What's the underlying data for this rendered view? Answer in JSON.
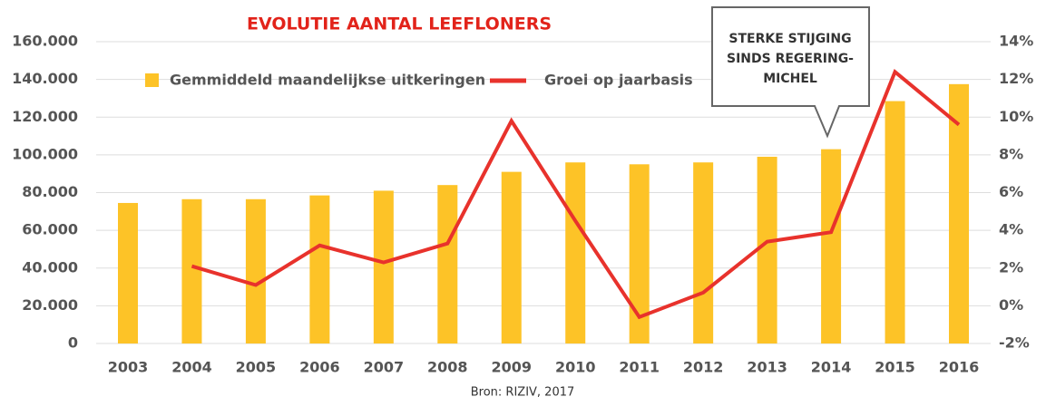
{
  "chart_data": {
    "type": "bar-line",
    "title": "EVOLUTIE AANTAL LEEFLONERS",
    "source": "Bron: RIZIV, 2017",
    "annotation": [
      "STERKE STIJGING",
      "SINDS REGERING-",
      "MICHEL"
    ],
    "categories": [
      "2003",
      "2004",
      "2005",
      "2006",
      "2007",
      "2008",
      "2009",
      "2010",
      "2011",
      "2012",
      "2013",
      "2014",
      "2015",
      "2016"
    ],
    "series": [
      {
        "name": "Gemmiddeld maandelijkse uitkeringen",
        "type": "bar",
        "color": "#fdc327",
        "values": [
          74500,
          76500,
          76500,
          78500,
          81000,
          84000,
          91000,
          96000,
          95000,
          96000,
          99000,
          103000,
          128500,
          137500
        ]
      },
      {
        "name": "Groei op jaarbasis",
        "type": "line",
        "axis": "y2",
        "color": "#e8322c",
        "values": [
          null,
          2.1,
          1.1,
          3.2,
          2.3,
          3.3,
          9.8,
          4.5,
          -0.6,
          0.7,
          3.4,
          3.9,
          12.4,
          9.6
        ]
      }
    ],
    "ylim": [
      0,
      160000
    ],
    "yticks": [
      0,
      {
        "value": 20000,
        "label": "20.000"
      },
      {
        "value": 40000,
        "label": "40.000"
      },
      {
        "value": 60000,
        "label": "60.000"
      },
      {
        "value": 80000,
        "label": "80.000"
      },
      {
        "value": 100000,
        "label": "100.000"
      },
      {
        "value": 120000,
        "label": "120.000"
      },
      {
        "value": 140000,
        "label": "140.000"
      },
      {
        "value": 160000,
        "label": "160.000"
      }
    ],
    "y2lim": [
      -2,
      14
    ],
    "y2ticks": [
      {
        "value": -2,
        "label": "-2%"
      },
      {
        "value": 0,
        "label": "0%"
      },
      {
        "value": 2,
        "label": "2%"
      },
      {
        "value": 4,
        "label": "4%"
      },
      {
        "value": 6,
        "label": "6%"
      },
      {
        "value": 8,
        "label": "8%"
      },
      {
        "value": 10,
        "label": "10%"
      },
      {
        "value": 12,
        "label": "12%"
      },
      {
        "value": 14,
        "label": "14%"
      }
    ],
    "grid": true
  }
}
